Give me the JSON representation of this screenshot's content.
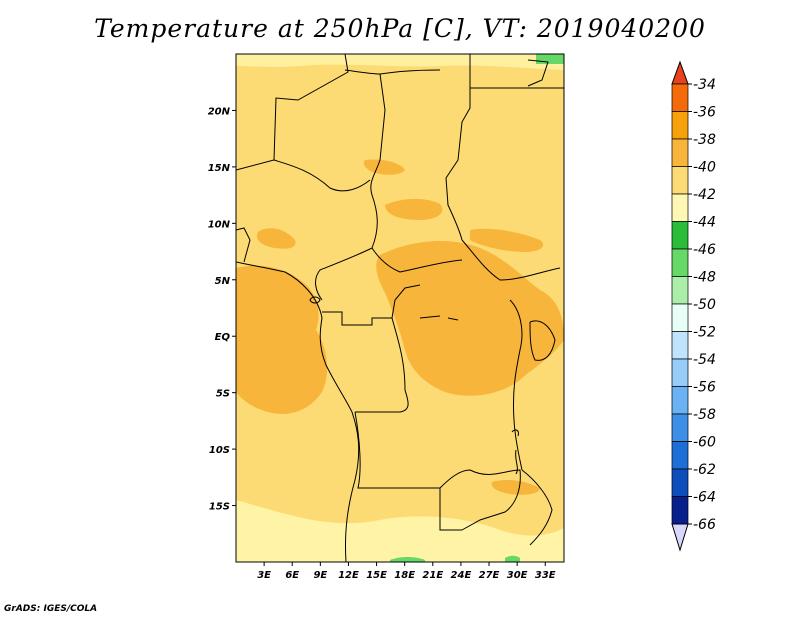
{
  "title": "Temperature at 250hPa [C], VT: 2019040200",
  "credit": "GrADS: IGES/COLA",
  "map": {
    "lon_range": [
      0,
      35
    ],
    "lat_range": [
      -20,
      25
    ],
    "lat_ticks": [
      "20N",
      "15N",
      "10N",
      "5N",
      "EQ",
      "5S",
      "10S",
      "15S"
    ],
    "lat_values": [
      20,
      15,
      10,
      5,
      0,
      -5,
      -10,
      -15
    ],
    "lon_ticks": [
      "3E",
      "6E",
      "9E",
      "12E",
      "15E",
      "18E",
      "21E",
      "24E",
      "27E",
      "30E",
      "33E"
    ],
    "lon_values": [
      3,
      6,
      9,
      12,
      15,
      18,
      21,
      24,
      27,
      30,
      33
    ]
  },
  "colorbar": {
    "labels": [
      "-34",
      "-36",
      "-38",
      "-40",
      "-42",
      "-44",
      "-46",
      "-48",
      "-50",
      "-52",
      "-54",
      "-56",
      "-58",
      "-60",
      "-62",
      "-64",
      "-66"
    ],
    "colors": [
      "#e8431c",
      "#f36b0b",
      "#f6a10a",
      "#f8b53c",
      "#fcdb74",
      "#fff8b4",
      "#2bbd3a",
      "#66d866",
      "#aaeeaa",
      "#e8fff8",
      "#bfe4fc",
      "#95ccf8",
      "#6ab2f4",
      "#3e8fe8",
      "#1e6ed8",
      "#0e4ebc",
      "#07208c",
      "#0a0a60",
      "#d8d8ff"
    ]
  }
}
